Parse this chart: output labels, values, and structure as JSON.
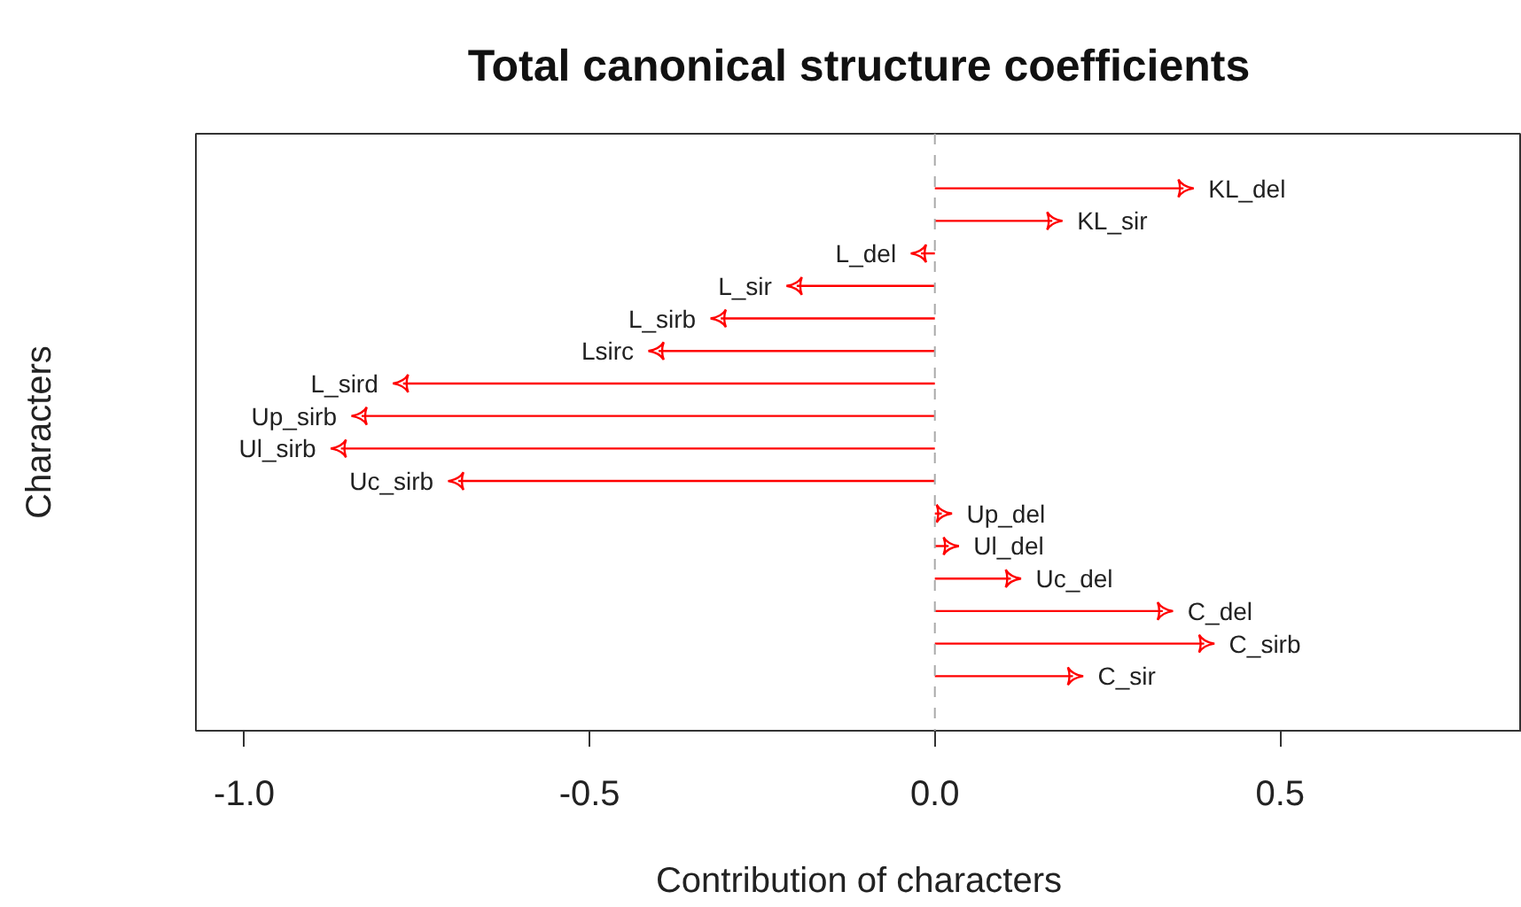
{
  "chart_data": {
    "type": "lollipop",
    "title": "Total canonical structure coefficients",
    "xlabel": "Contribution of characters",
    "ylabel": "Characters",
    "orientation": "horizontal",
    "categories": [
      "KL_del",
      "KL_sir",
      "L_del",
      "L_sir",
      "L_sirb",
      "Lsirc",
      "L_sird",
      "Up_sirb",
      "Ul_sirb",
      "Uc_sirb",
      "Up_del",
      "Ul_del",
      "Uc_del",
      "C_del",
      "C_sirb",
      "C_sir"
    ],
    "values": [
      0.36,
      0.17,
      -0.02,
      -0.2,
      -0.31,
      -0.4,
      -0.77,
      -0.83,
      -0.86,
      -0.69,
      0.01,
      0.02,
      0.11,
      0.33,
      0.39,
      0.2
    ],
    "color": "#ff0000",
    "xlim": [
      -1.07,
      0.85
    ],
    "xticks": [
      {
        "value": -1,
        "label": "-1.0"
      },
      -0.5,
      {
        "value": 0,
        "label": "0.0"
      },
      0.5
    ],
    "ref_lines": [
      {
        "axis": "x",
        "value": 0,
        "color": "#aaaaaa",
        "line_style": "dashed"
      }
    ],
    "tick_labels": "x",
    "grid": false
  }
}
